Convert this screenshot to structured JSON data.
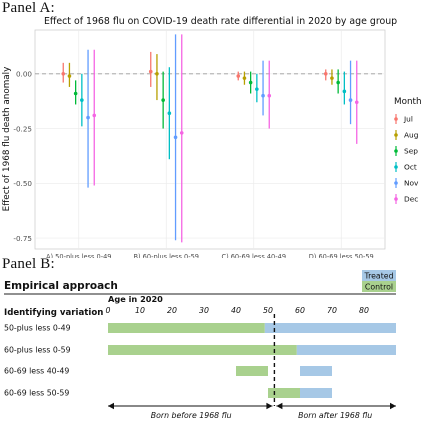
{
  "panel_a": {
    "label": "Panel A:"
  },
  "panel_b": {
    "label": "Panel B:",
    "header": "Empirical approach",
    "legend": [
      {
        "label": "Treated",
        "color": "#a6c8e6"
      },
      {
        "label": "Control",
        "color": "#a9d18e"
      }
    ],
    "identifying_variation_label": "Identifying variation",
    "age_axis_title": "Age in 2020",
    "age_ticks": [
      0,
      10,
      20,
      30,
      40,
      50,
      60,
      70,
      80
    ],
    "age_range": [
      0,
      90
    ],
    "cutoff_age": 52,
    "rows": [
      {
        "label": "50-plus less 0-49",
        "control": [
          0,
          49
        ],
        "treated": [
          49,
          90
        ]
      },
      {
        "label": "60-plus less 0-59",
        "control": [
          0,
          59
        ],
        "treated": [
          59,
          90
        ]
      },
      {
        "label": "60-69 less 40-49",
        "control": [
          40,
          50
        ],
        "treated": [
          60,
          70
        ]
      },
      {
        "label": "60-69 less 50-59",
        "control": [
          50,
          60
        ],
        "treated": [
          60,
          70
        ]
      }
    ],
    "arrow_left_label": "Born before 1968 flu",
    "arrow_right_label": "Born after 1968 flu"
  },
  "chart_data": {
    "type": "scatter",
    "title": "Effect of 1968 flu on COVID-19 death rate differential in 2020 by age group",
    "xlabel": "",
    "ylabel": "Effect of 1968 flu death anomaly",
    "categories": [
      "A) 50-plus less 0-49",
      "B) 60-plus less 0-59",
      "C) 60-69 less 40-49",
      "D) 60-69 less 50-59"
    ],
    "ylim": [
      -0.8,
      0.2
    ],
    "yticks": [
      0.0,
      -0.25,
      -0.5,
      -0.75
    ],
    "reference_line": 0,
    "grid": true,
    "legend_title": "Month",
    "legend_position": "right",
    "series": [
      {
        "name": "Jul",
        "color": "#f8766d",
        "values": [
          0.0,
          0.01,
          -0.01,
          0.0
        ],
        "lower": [
          -0.04,
          -0.06,
          -0.03,
          -0.03
        ],
        "upper": [
          0.05,
          0.1,
          0.01,
          0.02
        ]
      },
      {
        "name": "Aug",
        "color": "#b79f00",
        "values": [
          -0.01,
          0.0,
          -0.02,
          -0.02
        ],
        "lower": [
          -0.06,
          -0.12,
          -0.05,
          -0.05
        ],
        "upper": [
          0.05,
          0.09,
          0.01,
          0.02
        ]
      },
      {
        "name": "Sep",
        "color": "#00ba38",
        "values": [
          -0.09,
          -0.12,
          -0.04,
          -0.04
        ],
        "lower": [
          -0.14,
          -0.25,
          -0.09,
          -0.09
        ],
        "upper": [
          -0.03,
          0.01,
          0.01,
          0.02
        ]
      },
      {
        "name": "Oct",
        "color": "#00bfc4",
        "values": [
          -0.12,
          -0.18,
          -0.07,
          -0.08
        ],
        "lower": [
          -0.24,
          -0.39,
          -0.13,
          -0.14
        ],
        "upper": [
          0.0,
          0.03,
          0.0,
          0.01
        ]
      },
      {
        "name": "Nov",
        "color": "#619cff",
        "values": [
          -0.2,
          -0.29,
          -0.1,
          -0.12
        ],
        "lower": [
          -0.52,
          -0.76,
          -0.19,
          -0.23
        ],
        "upper": [
          0.11,
          0.18,
          0.06,
          0.06
        ]
      },
      {
        "name": "Dec",
        "color": "#f564e3",
        "values": [
          -0.19,
          -0.27,
          -0.1,
          -0.13
        ],
        "lower": [
          -0.51,
          -0.77,
          -0.25,
          -0.32
        ],
        "upper": [
          0.11,
          0.18,
          0.06,
          0.06
        ]
      }
    ]
  }
}
